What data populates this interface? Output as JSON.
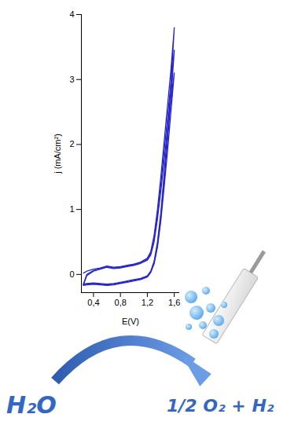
{
  "chart_data": {
    "type": "line",
    "xlabel": "E(V)",
    "ylabel": "j (mA/cm²)",
    "xlim": [
      0.22,
      1.68
    ],
    "ylim": [
      -0.28,
      4.0
    ],
    "xticks": [
      {
        "value": 0.4,
        "label": "0,4"
      },
      {
        "value": 0.8,
        "label": "0,8"
      },
      {
        "value": 1.2,
        "label": "1,2"
      },
      {
        "value": 1.6,
        "label": "1,6"
      }
    ],
    "yticks": [
      0,
      1,
      2,
      3,
      4
    ],
    "grid": false,
    "series": [
      {
        "color": "#2727c9",
        "x": [
          0.25,
          0.3,
          0.4,
          0.5,
          0.6,
          0.7,
          0.8,
          0.9,
          1.0,
          1.1,
          1.2,
          1.25,
          1.3,
          1.35,
          1.4,
          1.45,
          1.5,
          1.55,
          1.6,
          1.6,
          1.55,
          1.5,
          1.45,
          1.4,
          1.35,
          1.3,
          1.25,
          1.2,
          1.1,
          1.0,
          0.9,
          0.8,
          0.7,
          0.6,
          0.5,
          0.4,
          0.3,
          0.25
        ],
        "values": [
          0.02,
          0.05,
          0.08,
          0.1,
          0.13,
          0.11,
          0.12,
          0.14,
          0.16,
          0.19,
          0.25,
          0.35,
          0.6,
          1.0,
          1.5,
          2.05,
          2.6,
          3.15,
          3.8,
          3.8,
          2.9,
          2.2,
          1.55,
          0.95,
          0.5,
          0.2,
          0.05,
          -0.02,
          -0.06,
          -0.08,
          -0.1,
          -0.12,
          -0.14,
          -0.15,
          -0.14,
          -0.13,
          -0.14,
          -0.15
        ]
      },
      {
        "color": "#2727c9",
        "x": [
          0.25,
          0.3,
          0.4,
          0.5,
          0.6,
          0.7,
          0.8,
          0.9,
          1.0,
          1.1,
          1.2,
          1.25,
          1.3,
          1.35,
          1.4,
          1.45,
          1.5,
          1.55,
          1.6,
          1.6,
          1.55,
          1.5,
          1.45,
          1.4,
          1.35,
          1.3,
          1.25,
          1.2,
          1.1,
          1.0,
          0.9,
          0.8,
          0.7,
          0.6,
          0.5,
          0.4,
          0.3,
          0.25
        ],
        "values": [
          -0.15,
          0.0,
          0.06,
          0.09,
          0.12,
          0.1,
          0.11,
          0.13,
          0.15,
          0.18,
          0.23,
          0.32,
          0.55,
          0.92,
          1.38,
          1.9,
          2.42,
          2.95,
          3.45,
          3.45,
          2.7,
          2.05,
          1.45,
          0.88,
          0.45,
          0.18,
          0.04,
          -0.03,
          -0.07,
          -0.09,
          -0.11,
          -0.13,
          -0.15,
          -0.16,
          -0.15,
          -0.14,
          -0.15,
          -0.16
        ]
      },
      {
        "color": "#2727c9",
        "x": [
          0.25,
          0.3,
          0.4,
          0.5,
          0.6,
          0.7,
          0.8,
          0.9,
          1.0,
          1.1,
          1.2,
          1.25,
          1.3,
          1.35,
          1.4,
          1.45,
          1.5,
          1.55,
          1.6,
          1.6,
          1.55,
          1.5,
          1.45,
          1.4,
          1.35,
          1.3,
          1.25,
          1.2,
          1.1,
          1.0,
          0.9,
          0.8,
          0.7,
          0.6,
          0.5,
          0.4,
          0.3,
          0.25
        ],
        "values": [
          -0.16,
          -0.02,
          0.05,
          0.08,
          0.11,
          0.09,
          0.1,
          0.12,
          0.14,
          0.17,
          0.22,
          0.3,
          0.5,
          0.85,
          1.28,
          1.76,
          2.25,
          2.7,
          3.1,
          3.1,
          2.5,
          1.9,
          1.35,
          0.82,
          0.42,
          0.16,
          0.03,
          -0.04,
          -0.08,
          -0.1,
          -0.12,
          -0.14,
          -0.16,
          -0.17,
          -0.16,
          -0.15,
          -0.16,
          -0.17
        ]
      }
    ],
    "annotations": [
      "H₂O",
      "1/2 O₂ + H₂"
    ]
  }
}
